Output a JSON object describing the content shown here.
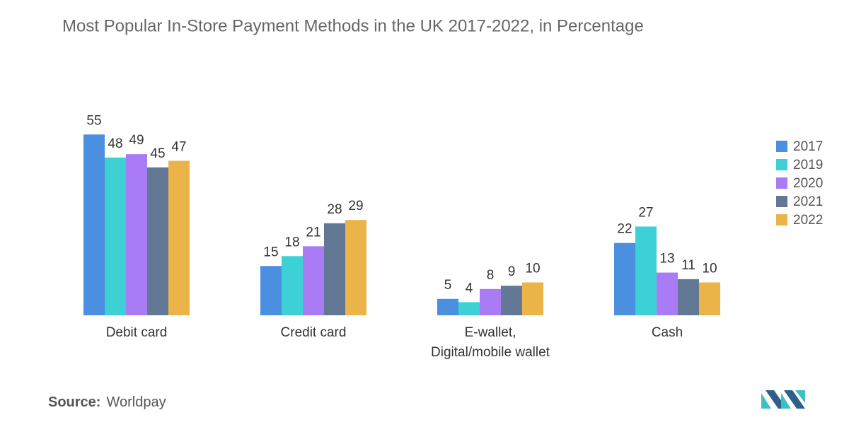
{
  "chart_data": {
    "type": "bar",
    "title": "Most Popular In-Store Payment Methods in the UK 2017-2022, in Percentage",
    "categories": [
      "Debit card",
      "Credit card",
      "E-wallet,\nDigital/mobile wallet",
      "Cash"
    ],
    "series": [
      {
        "name": "2017",
        "color": "#4a8fe0",
        "values": [
          55,
          15,
          5,
          22
        ]
      },
      {
        "name": "2019",
        "color": "#3dd1d6",
        "values": [
          48,
          18,
          4,
          27
        ]
      },
      {
        "name": "2020",
        "color": "#a97cf5",
        "values": [
          49,
          21,
          8,
          13
        ]
      },
      {
        "name": "2021",
        "color": "#627895",
        "values": [
          45,
          28,
          9,
          11
        ]
      },
      {
        "name": "2022",
        "color": "#ebb449",
        "values": [
          47,
          29,
          10,
          10
        ]
      }
    ],
    "ylim": [
      0,
      60
    ],
    "legend": "right",
    "source_label": "Source:",
    "source": "Worldpay"
  }
}
